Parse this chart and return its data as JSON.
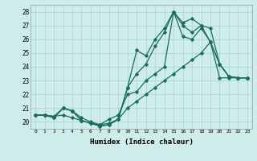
{
  "xlabel": "Humidex (Indice chaleur)",
  "bg_color": "#ceecea",
  "grid_color": "#a8d8d4",
  "line_color": "#1a6b60",
  "xlim": [
    -0.5,
    23.5
  ],
  "ylim": [
    19.5,
    28.5
  ],
  "xticks": [
    0,
    1,
    2,
    3,
    4,
    5,
    6,
    7,
    8,
    9,
    10,
    11,
    12,
    13,
    14,
    15,
    16,
    17,
    18,
    19,
    20,
    21,
    22,
    23
  ],
  "yticks": [
    20,
    21,
    22,
    23,
    24,
    25,
    26,
    27,
    28
  ],
  "series": [
    [
      20.5,
      20.5,
      20.4,
      20.5,
      20.3,
      20.1,
      19.9,
      19.8,
      19.9,
      20.2,
      21.0,
      21.5,
      22.0,
      22.5,
      23.0,
      23.5,
      24.0,
      24.5,
      25.0,
      25.8,
      23.2,
      23.2,
      23.2,
      23.2
    ],
    [
      20.5,
      20.5,
      20.4,
      21.0,
      20.8,
      20.3,
      20.0,
      19.8,
      20.2,
      20.5,
      22.0,
      22.2,
      23.0,
      23.5,
      24.0,
      28.0,
      26.2,
      26.0,
      26.8,
      25.8,
      24.2,
      23.3,
      23.2,
      23.2
    ],
    [
      20.5,
      20.5,
      20.3,
      21.0,
      20.8,
      20.1,
      19.9,
      19.7,
      19.8,
      20.2,
      22.5,
      23.5,
      24.2,
      25.5,
      26.5,
      28.0,
      27.0,
      26.5,
      27.0,
      26.8,
      24.2,
      23.3,
      23.2,
      23.2
    ],
    [
      20.5,
      20.5,
      20.3,
      21.0,
      20.8,
      20.1,
      19.9,
      19.7,
      19.8,
      20.2,
      22.5,
      25.2,
      24.8,
      26.0,
      26.8,
      28.0,
      27.2,
      27.5,
      27.0,
      25.8,
      24.2,
      23.3,
      23.2,
      23.2
    ]
  ]
}
